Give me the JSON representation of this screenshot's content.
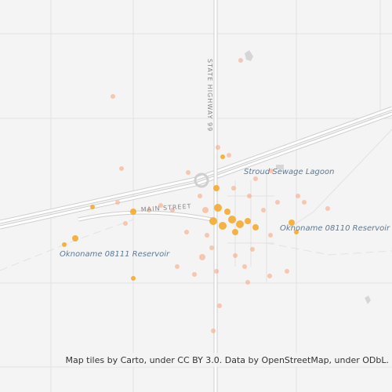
{
  "map": {
    "labels": {
      "highway": "STATE HIGHWAY 99",
      "lagoon": "Stroud Sewage Lagoon",
      "main_street": "MAIN STREET",
      "reservoir_east": "Oknoname 08110 Reservoir",
      "reservoir_west": "Oknoname 08111 Reservoir"
    },
    "attribution": "Map tiles by Carto, under CC BY 3.0. Data by OpenStreetMap, under ODbL."
  }
}
